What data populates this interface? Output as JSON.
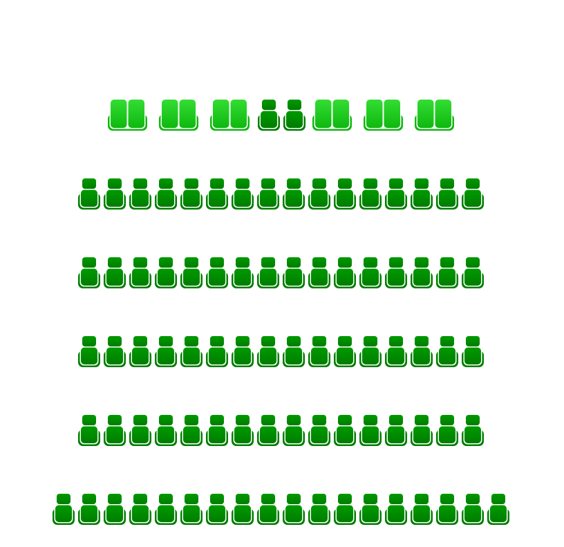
{
  "seat_map": {
    "colors": {
      "regular_seat": "#007d00",
      "regular_seat_light": "#009a00",
      "love_seat": "#0fb80f",
      "love_seat_light": "#33dd33"
    },
    "rows": [
      {
        "seats": [
          "love-seat",
          "love-seat",
          "love-seat",
          "regular",
          "regular",
          "love-seat",
          "love-seat",
          "love-seat"
        ]
      },
      {
        "seats": [
          "regular",
          "regular",
          "regular",
          "regular",
          "regular",
          "regular",
          "regular",
          "regular",
          "regular",
          "regular",
          "regular",
          "regular",
          "regular",
          "regular",
          "regular",
          "regular"
        ]
      },
      {
        "seats": [
          "regular",
          "regular",
          "regular",
          "regular",
          "regular",
          "regular",
          "regular",
          "regular",
          "regular",
          "regular",
          "regular",
          "regular",
          "regular",
          "regular",
          "regular",
          "regular"
        ]
      },
      {
        "seats": [
          "regular",
          "regular",
          "regular",
          "regular",
          "regular",
          "regular",
          "regular",
          "regular",
          "regular",
          "regular",
          "regular",
          "regular",
          "regular",
          "regular",
          "regular",
          "regular"
        ]
      },
      {
        "seats": [
          "regular",
          "regular",
          "regular",
          "regular",
          "regular",
          "regular",
          "regular",
          "regular",
          "regular",
          "regular",
          "regular",
          "regular",
          "regular",
          "regular",
          "regular",
          "regular"
        ]
      },
      {
        "seats": [
          "regular",
          "regular",
          "regular",
          "regular",
          "regular",
          "regular",
          "regular",
          "regular",
          "regular",
          "regular",
          "regular",
          "regular",
          "regular",
          "regular",
          "regular",
          "regular",
          "regular",
          "regular"
        ]
      }
    ]
  }
}
